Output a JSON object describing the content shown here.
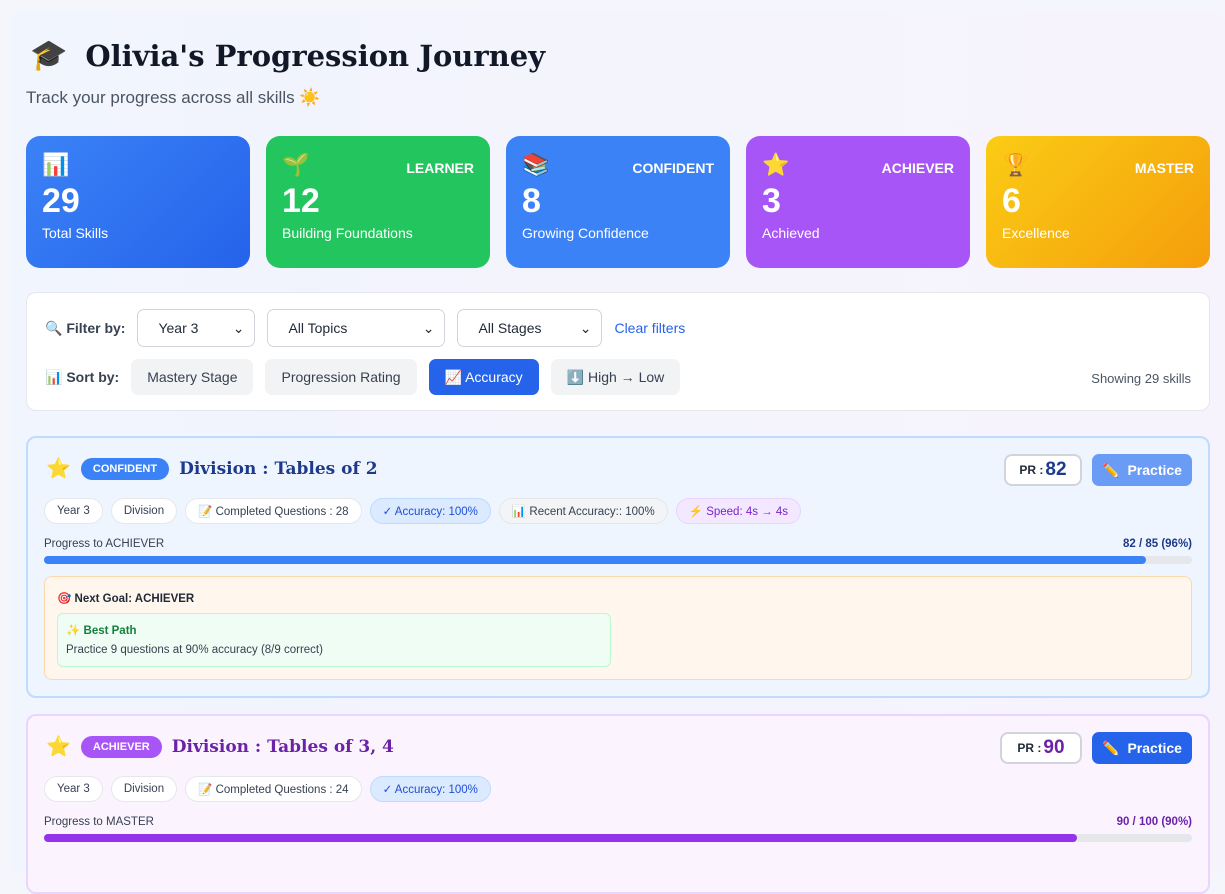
{
  "header": {
    "icon": "graduation-cap-icon",
    "title": "Olivia's Progression Journey",
    "subtitle": "Track your progress across all skills ☀️"
  },
  "stats": [
    {
      "icon": "📊",
      "tag": "",
      "value": "29",
      "label": "Total Skills",
      "color": "#2563eb"
    },
    {
      "icon": "🌱",
      "tag": "LEARNER",
      "value": "12",
      "label": "Building Foundations",
      "color": "#22c55e"
    },
    {
      "icon": "📚",
      "tag": "CONFIDENT",
      "value": "8",
      "label": "Growing Confidence",
      "color": "#3b82f6"
    },
    {
      "icon": "⭐",
      "tag": "ACHIEVER",
      "value": "3",
      "label": "Achieved",
      "color": "#a855f7"
    },
    {
      "icon": "🏆",
      "tag": "MASTER",
      "value": "6",
      "label": "Excellence",
      "color": "#f59e0b"
    }
  ],
  "filters": {
    "label": "Filter by:",
    "year": "Year 3",
    "topic": "All Topics",
    "stage": "All Stages",
    "clear": "Clear filters"
  },
  "sort": {
    "label": "Sort by:",
    "options": [
      "Mastery Stage",
      "Progression Rating",
      "📈 Accuracy",
      "⬇️ High → Low"
    ],
    "active": "📈 Accuracy",
    "showing": "Showing 29 skills"
  },
  "skills": [
    {
      "stage": "CONFIDENT",
      "title": "Division : Tables of 2",
      "pr_label": "PR :",
      "pr": "82",
      "practice": "Practice",
      "chips": [
        "Year 3",
        "Division",
        "📝 Completed Questions : 28",
        "✓ Accuracy: 100%",
        "📊 Recent Accuracy:: 100%",
        "⚡ Speed: 4s → 4s"
      ],
      "progress_label": "Progress to ACHIEVER",
      "progress_value": "82 / 85 (96%)",
      "progress": 96,
      "goal": "🎯 Next Goal: ACHIEVER",
      "best_title": "✨ Best Path",
      "best_desc": "Practice 9 questions at 90% accuracy (8/9 correct)",
      "accent": "#3b82f6"
    },
    {
      "stage": "ACHIEVER",
      "title": "Division : Tables of 3, 4",
      "pr_label": "PR :",
      "pr": "90",
      "practice": "Practice",
      "chips": [
        "Year 3",
        "Division",
        "📝 Completed Questions : 24",
        "✓ Accuracy: 100%"
      ],
      "progress_label": "Progress to MASTER",
      "progress_value": "90 / 100 (90%)",
      "progress": 90,
      "accent": "#a855f7"
    }
  ]
}
